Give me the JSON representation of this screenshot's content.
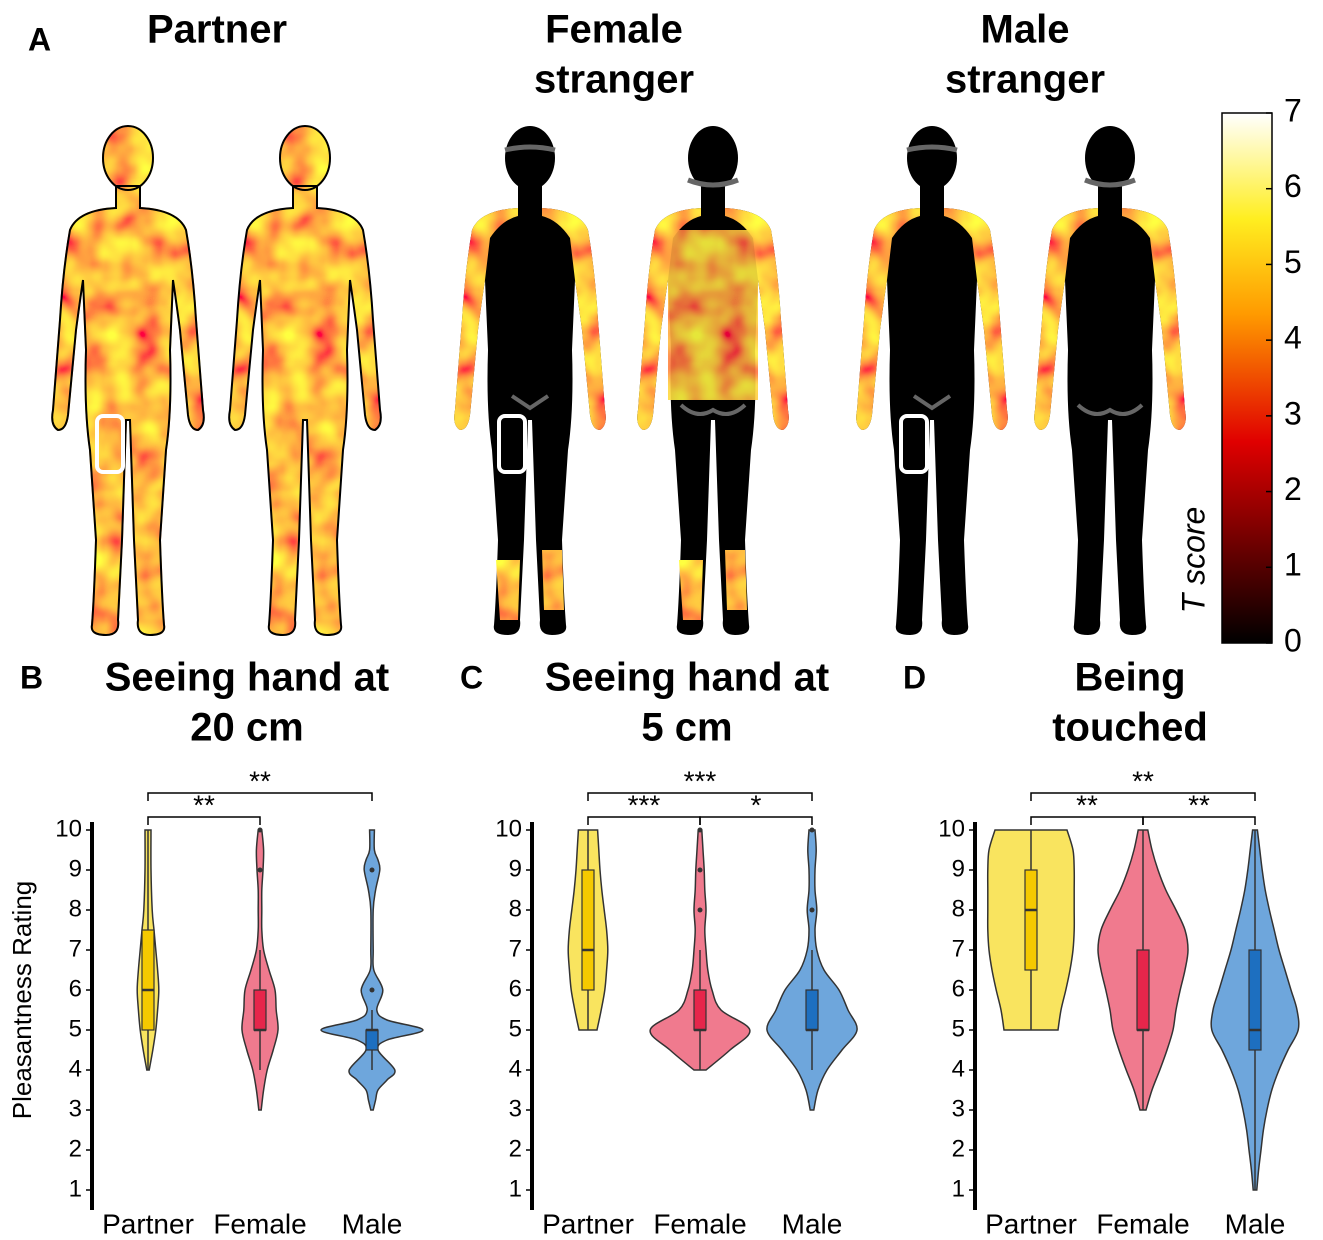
{
  "chart_data": [
    {
      "type": "bodymap",
      "panel": "A",
      "maps": [
        {
          "title": [
            "Partner"
          ]
        },
        {
          "title": [
            "Female",
            "stranger"
          ]
        },
        {
          "title": [
            "Male",
            "stranger"
          ]
        }
      ],
      "colorbar_label": "T score",
      "clim": [
        0,
        7
      ],
      "cticks": [
        0,
        1,
        2,
        3,
        4,
        5,
        6,
        7
      ]
    },
    {
      "type": "violin",
      "panel": "B",
      "title": [
        "Seeing hand at",
        "20 cm"
      ],
      "ylabel": "Pleasantness Rating",
      "categories": [
        "Partner",
        "Female",
        "Male"
      ],
      "ylim": [
        0.5,
        10.4
      ],
      "yticks": [
        1,
        2,
        3,
        4,
        5,
        6,
        7,
        8,
        9,
        10
      ],
      "significance": [
        {
          "from": 0,
          "to": 1,
          "label": "**"
        },
        {
          "from": 0,
          "to": 2,
          "label": "**"
        }
      ],
      "series": [
        {
          "color": "#f9e45f",
          "box_color": "#f5c900",
          "q1": 5,
          "median": 6,
          "q3": 7.5,
          "whisker_low": 4,
          "whisker_high": 10,
          "outliers": [],
          "density_y": [
            4,
            4.5,
            5,
            5.5,
            6,
            6.5,
            7,
            7.5,
            8,
            9,
            10
          ],
          "density": [
            0.02,
            0.08,
            0.13,
            0.16,
            0.18,
            0.16,
            0.13,
            0.1,
            0.07,
            0.05,
            0.05
          ]
        },
        {
          "color": "#f07a8e",
          "box_color": "#e6264b",
          "q1": 5,
          "median": 5,
          "q3": 6,
          "whisker_low": 4,
          "whisker_high": 7,
          "outliers": [
            9,
            10
          ],
          "density_y": [
            3,
            3.5,
            4,
            4.5,
            5,
            5.5,
            6,
            6.5,
            7,
            7.5,
            8,
            8.5,
            9,
            9.5,
            10
          ],
          "density": [
            0.02,
            0.06,
            0.12,
            0.22,
            0.3,
            0.27,
            0.25,
            0.15,
            0.06,
            0.03,
            0.03,
            0.03,
            0.05,
            0.06,
            0.03
          ]
        },
        {
          "color": "#6ea6dc",
          "box_color": "#1d6fc0",
          "q1": 4.5,
          "median": 5,
          "q3": 5,
          "whisker_low": 4,
          "whisker_high": 5.5,
          "outliers": [
            6,
            9
          ],
          "density_y": [
            3,
            3.25,
            3.5,
            3.75,
            4,
            4.5,
            4.75,
            5,
            5.25,
            5.5,
            6,
            6.5,
            7,
            8,
            8.5,
            9,
            9.25,
            9.5,
            10
          ],
          "density": [
            0.02,
            0.06,
            0.1,
            0.25,
            0.38,
            0.1,
            0.25,
            0.85,
            0.25,
            0.08,
            0.18,
            0.03,
            0.02,
            0.02,
            0.06,
            0.13,
            0.1,
            0.04,
            0.04
          ]
        }
      ]
    },
    {
      "type": "violin",
      "panel": "C",
      "title": [
        "Seeing hand at",
        "5 cm"
      ],
      "categories": [
        "Partner",
        "Female",
        "Male"
      ],
      "ylim": [
        0.5,
        10.4
      ],
      "yticks": [
        1,
        2,
        3,
        4,
        5,
        6,
        7,
        8,
        9,
        10
      ],
      "significance": [
        {
          "from": 0,
          "to": 1,
          "label": "***"
        },
        {
          "from": 1,
          "to": 2,
          "label": "*"
        },
        {
          "from": 0,
          "to": 2,
          "label": "***"
        }
      ],
      "series": [
        {
          "color": "#f9e45f",
          "box_color": "#f5c900",
          "q1": 6,
          "median": 7,
          "q3": 9,
          "whisker_low": 5,
          "whisker_high": 10,
          "outliers": [],
          "density_y": [
            5,
            5.5,
            6,
            6.5,
            7,
            7.5,
            8,
            8.5,
            9,
            9.5,
            10
          ],
          "density": [
            0.15,
            0.22,
            0.28,
            0.31,
            0.33,
            0.31,
            0.27,
            0.23,
            0.2,
            0.18,
            0.16
          ]
        },
        {
          "color": "#f07a8e",
          "box_color": "#e6264b",
          "q1": 5,
          "median": 5,
          "q3": 6,
          "whisker_low": 4,
          "whisker_high": 7,
          "outliers": [
            8,
            9,
            10
          ],
          "density_y": [
            4,
            4.5,
            5,
            5.5,
            6,
            6.5,
            7,
            7.5,
            8,
            8.5,
            9,
            9.5,
            10
          ],
          "density": [
            0.1,
            0.5,
            0.83,
            0.35,
            0.2,
            0.13,
            0.1,
            0.08,
            0.1,
            0.08,
            0.07,
            0.05,
            0.03
          ]
        },
        {
          "color": "#6ea6dc",
          "box_color": "#1d6fc0",
          "q1": 5,
          "median": 5,
          "q3": 6,
          "whisker_low": 4,
          "whisker_high": 7,
          "outliers": [
            8,
            10
          ],
          "density_y": [
            3,
            3.5,
            4,
            4.5,
            5,
            5.5,
            6,
            6.5,
            7,
            7.5,
            8,
            8.5,
            9,
            9.5,
            10
          ],
          "density": [
            0.03,
            0.1,
            0.25,
            0.5,
            0.75,
            0.6,
            0.45,
            0.2,
            0.08,
            0.05,
            0.08,
            0.05,
            0.05,
            0.07,
            0.05
          ]
        }
      ]
    },
    {
      "type": "violin",
      "panel": "D",
      "title": [
        "Being",
        "touched"
      ],
      "categories": [
        "Partner",
        "Female",
        "Male"
      ],
      "ylim": [
        0.5,
        10.4
      ],
      "yticks": [
        1,
        2,
        3,
        4,
        5,
        6,
        7,
        8,
        9,
        10
      ],
      "significance": [
        {
          "from": 0,
          "to": 1,
          "label": "**"
        },
        {
          "from": 1,
          "to": 2,
          "label": "**"
        },
        {
          "from": 0,
          "to": 2,
          "label": "**"
        }
      ],
      "series": [
        {
          "color": "#f9e45f",
          "box_color": "#f5c900",
          "q1": 6.5,
          "median": 8,
          "q3": 9,
          "whisker_low": 5,
          "whisker_high": 10,
          "outliers": [],
          "density_y": [
            5,
            5.5,
            6,
            6.5,
            7,
            7.5,
            8,
            8.5,
            9,
            9.5,
            10
          ],
          "density": [
            0.45,
            0.5,
            0.58,
            0.65,
            0.7,
            0.72,
            0.72,
            0.72,
            0.72,
            0.7,
            0.6
          ]
        },
        {
          "color": "#f07a8e",
          "box_color": "#e6264b",
          "q1": 5,
          "median": 5,
          "q3": 7,
          "whisker_low": 3,
          "whisker_high": 10,
          "outliers": [],
          "density_y": [
            3,
            3.5,
            4,
            4.5,
            5,
            5.5,
            6,
            6.5,
            7,
            7.5,
            8,
            8.5,
            9,
            9.5,
            10
          ],
          "density": [
            0.05,
            0.15,
            0.28,
            0.4,
            0.5,
            0.55,
            0.62,
            0.7,
            0.75,
            0.7,
            0.55,
            0.38,
            0.25,
            0.15,
            0.08
          ]
        },
        {
          "color": "#6ea6dc",
          "box_color": "#1d6fc0",
          "q1": 4.5,
          "median": 5,
          "q3": 7,
          "whisker_low": 1,
          "whisker_high": 10,
          "outliers": [],
          "density_y": [
            1,
            1.5,
            2,
            2.5,
            3,
            3.5,
            4,
            4.5,
            5,
            5.5,
            6,
            6.5,
            7,
            7.5,
            8,
            8.5,
            9,
            9.5,
            10
          ],
          "density": [
            0.03,
            0.06,
            0.1,
            0.14,
            0.2,
            0.28,
            0.4,
            0.55,
            0.72,
            0.7,
            0.6,
            0.5,
            0.4,
            0.32,
            0.24,
            0.17,
            0.12,
            0.08,
            0.04
          ]
        }
      ]
    }
  ]
}
